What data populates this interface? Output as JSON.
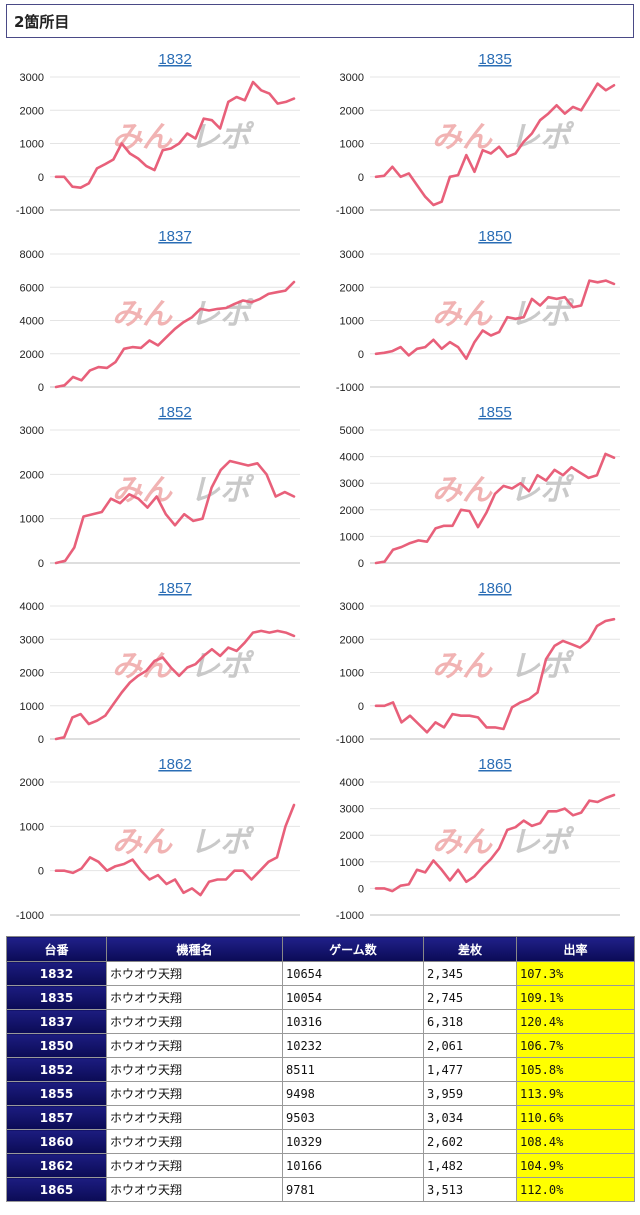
{
  "header": {
    "title": "2箇所目"
  },
  "colors": {
    "line": "#e8607a",
    "header_bg": "#12126e",
    "rate_bg": "#ffff00",
    "link": "#2a6db5"
  },
  "watermark": {
    "red": "みん",
    "gray": "レポ"
  },
  "chart_data": [
    {
      "type": "line",
      "title": "1832",
      "ylim": [
        -1000,
        3000
      ],
      "yticks": [
        3000,
        2000,
        1000,
        0,
        -1000
      ],
      "values": [
        0,
        0,
        -300,
        -330,
        -200,
        250,
        380,
        520,
        1000,
        700,
        550,
        320,
        200,
        800,
        850,
        1000,
        1300,
        1150,
        1750,
        1700,
        1450,
        2250,
        2400,
        2300,
        2850,
        2600,
        2500,
        2200,
        2250,
        2350
      ]
    },
    {
      "type": "line",
      "title": "1835",
      "ylim": [
        -1000,
        3000
      ],
      "yticks": [
        3000,
        2000,
        1000,
        0,
        -1000
      ],
      "values": [
        0,
        30,
        300,
        0,
        100,
        -250,
        -600,
        -850,
        -750,
        0,
        50,
        650,
        150,
        800,
        700,
        900,
        600,
        700,
        1050,
        1300,
        1700,
        1900,
        2150,
        1900,
        2100,
        2000,
        2400,
        2800,
        2600,
        2750
      ]
    },
    {
      "type": "line",
      "title": "1837",
      "ylim": [
        0,
        8000
      ],
      "yticks": [
        8000,
        6000,
        4000,
        2000,
        0
      ],
      "values": [
        0,
        100,
        600,
        400,
        1000,
        1200,
        1150,
        1500,
        2300,
        2400,
        2350,
        2800,
        2500,
        3000,
        3500,
        3900,
        4200,
        4700,
        4600,
        4700,
        4750,
        5000,
        5200,
        5100,
        5300,
        5600,
        5700,
        5800,
        6318
      ]
    },
    {
      "type": "line",
      "title": "1850",
      "ylim": [
        -1000,
        3000
      ],
      "yticks": [
        3000,
        2000,
        1000,
        0,
        -1000
      ],
      "values": [
        0,
        30,
        80,
        200,
        -50,
        150,
        200,
        420,
        150,
        350,
        200,
        -150,
        350,
        700,
        550,
        650,
        1100,
        1050,
        1100,
        1650,
        1450,
        1700,
        1650,
        1700,
        1400,
        1450,
        2200,
        2150,
        2200,
        2100
      ]
    },
    {
      "type": "line",
      "title": "1852",
      "ylim": [
        0,
        3000
      ],
      "yticks": [
        3000,
        2000,
        1000,
        0
      ],
      "values": [
        0,
        50,
        350,
        1050,
        1100,
        1150,
        1450,
        1350,
        1550,
        1450,
        1250,
        1500,
        1100,
        850,
        1100,
        950,
        1000,
        1700,
        2100,
        2300,
        2250,
        2200,
        2250,
        2000,
        1500,
        1600,
        1500
      ]
    },
    {
      "type": "line",
      "title": "1855",
      "ylim": [
        0,
        5000
      ],
      "yticks": [
        5000,
        4000,
        3000,
        2000,
        1000,
        0
      ],
      "values": [
        0,
        50,
        500,
        600,
        750,
        850,
        800,
        1300,
        1400,
        1400,
        2000,
        1950,
        1350,
        1900,
        2600,
        2900,
        2800,
        3000,
        2700,
        3300,
        3100,
        3500,
        3300,
        3600,
        3400,
        3200,
        3300,
        4100,
        3959
      ]
    },
    {
      "type": "line",
      "title": "1857",
      "ylim": [
        0,
        4000
      ],
      "yticks": [
        4000,
        3000,
        2000,
        1000,
        0
      ],
      "values": [
        0,
        50,
        650,
        750,
        450,
        550,
        700,
        1050,
        1400,
        1700,
        1900,
        2050,
        2350,
        2450,
        2150,
        1900,
        2150,
        2250,
        2500,
        2700,
        2500,
        2750,
        2650,
        2900,
        3200,
        3250,
        3200,
        3250,
        3200,
        3100
      ]
    },
    {
      "type": "line",
      "title": "1860",
      "ylim": [
        -1000,
        3000
      ],
      "yticks": [
        3000,
        2000,
        1000,
        0,
        -1000
      ],
      "values": [
        0,
        0,
        100,
        -500,
        -300,
        -550,
        -800,
        -500,
        -650,
        -250,
        -300,
        -300,
        -350,
        -650,
        -650,
        -700,
        -50,
        100,
        200,
        400,
        1400,
        1800,
        1950,
        1850,
        1750,
        1950,
        2400,
        2550,
        2602
      ]
    },
    {
      "type": "line",
      "title": "1862",
      "ylim": [
        -1000,
        2000
      ],
      "yticks": [
        2000,
        1000,
        0,
        -1000
      ],
      "values": [
        0,
        0,
        -50,
        50,
        300,
        200,
        0,
        100,
        150,
        250,
        0,
        -200,
        -100,
        -300,
        -200,
        -500,
        -400,
        -550,
        -250,
        -200,
        -200,
        0,
        0,
        -200,
        0,
        200,
        300,
        1000,
        1482
      ]
    },
    {
      "type": "line",
      "title": "1865",
      "ylim": [
        -1000,
        4000
      ],
      "yticks": [
        4000,
        3000,
        2000,
        1000,
        0,
        -1000
      ],
      "values": [
        0,
        0,
        -100,
        100,
        150,
        700,
        600,
        1050,
        700,
        300,
        700,
        250,
        450,
        800,
        1100,
        1500,
        2200,
        2300,
        2550,
        2350,
        2450,
        2900,
        2900,
        3000,
        2750,
        2850,
        3300,
        3250,
        3400,
        3513
      ]
    }
  ],
  "table": {
    "headers": [
      "台番",
      "機種名",
      "ゲーム数",
      "差枚",
      "出率"
    ],
    "rows": [
      [
        "1832",
        "ホウオウ天翔",
        "10654",
        "2,345",
        "107.3%"
      ],
      [
        "1835",
        "ホウオウ天翔",
        "10054",
        "2,745",
        "109.1%"
      ],
      [
        "1837",
        "ホウオウ天翔",
        "10316",
        "6,318",
        "120.4%"
      ],
      [
        "1850",
        "ホウオウ天翔",
        "10232",
        "2,061",
        "106.7%"
      ],
      [
        "1852",
        "ホウオウ天翔",
        "8511",
        "1,477",
        "105.8%"
      ],
      [
        "1855",
        "ホウオウ天翔",
        "9498",
        "3,959",
        "113.9%"
      ],
      [
        "1857",
        "ホウオウ天翔",
        "9503",
        "3,034",
        "110.6%"
      ],
      [
        "1860",
        "ホウオウ天翔",
        "10329",
        "2,602",
        "108.4%"
      ],
      [
        "1862",
        "ホウオウ天翔",
        "10166",
        "1,482",
        "104.9%"
      ],
      [
        "1865",
        "ホウオウ天翔",
        "9781",
        "3,513",
        "112.0%"
      ]
    ]
  }
}
